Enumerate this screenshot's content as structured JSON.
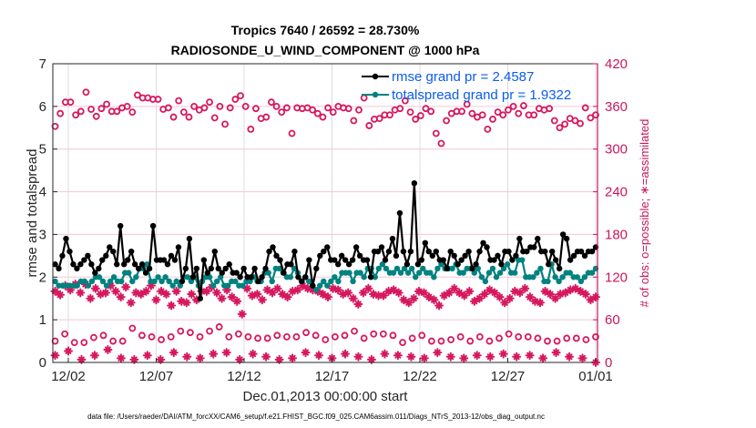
{
  "chart_data": {
    "type": "line",
    "title": "Tropics 7640 / 26592 = 28.730%",
    "subtitle": "RADIOSONDE_U_WIND_COMPONENT @ 1000 hPa",
    "xlabel": "Dec.01,2013 00:00:00 start",
    "ylabel": "rmse and totalspread",
    "y2label": "# of obs: o=possible; ∗=assimilated",
    "footnote": "data file: /Users/raeder/DAI/ATM_forcXX/CAM6_setup/f.e21.FHIST_BGC.f09_025.CAM6assim.011/Diags_NTrS_2013-12/obs_diag_output.nc",
    "x_unit": "days since Dec.01,2013 00:00:00",
    "xlim": [
      0,
      31.1
    ],
    "ylim": [
      0,
      7
    ],
    "y2lim": [
      0,
      420
    ],
    "grid": true,
    "legend_position": "top-right",
    "xticks": [
      {
        "value": 1,
        "label": "12/02"
      },
      {
        "value": 6,
        "label": "12/07"
      },
      {
        "value": 11,
        "label": "12/12"
      },
      {
        "value": 16,
        "label": "12/17"
      },
      {
        "value": 21,
        "label": "12/22"
      },
      {
        "value": 26,
        "label": "12/27"
      },
      {
        "value": 31,
        "label": "01/01"
      }
    ],
    "yticks": [
      "0",
      "1",
      "2",
      "3",
      "4",
      "5",
      "6",
      "7"
    ],
    "y2ticks": [
      "0",
      "60",
      "120",
      "180",
      "240",
      "300",
      "360",
      "420"
    ],
    "x_start": 0.25,
    "x_step": 0.25,
    "series": [
      {
        "name": "rmse grand pr = 2.4587",
        "axis": "left",
        "color": "#000000",
        "marker": "dot",
        "values": [
          2.3,
          2.2,
          2.5,
          2.9,
          2.6,
          2.3,
          2.2,
          2.3,
          2.4,
          2.5,
          2.3,
          2.1,
          2.2,
          2.4,
          2.5,
          2.7,
          2.6,
          2.3,
          3.2,
          2.3,
          2.4,
          2.6,
          2.3,
          2.2,
          2.3,
          2.1,
          2.2,
          3.2,
          2.4,
          2.4,
          2.4,
          2.3,
          2.5,
          2.4,
          2.7,
          1.9,
          2.2,
          2.9,
          2.0,
          2.2,
          1.5,
          2.4,
          2.1,
          2.2,
          2.6,
          2.2,
          2.1,
          2.2,
          2.3,
          2.1,
          2.1,
          2.0,
          2.2,
          2.0,
          2.0,
          2.2,
          1.9,
          2.0,
          2.2,
          2.6,
          2.7,
          2.5,
          2.4,
          2.1,
          2.3,
          2.3,
          2.6,
          2.0,
          1.9,
          2.0,
          2.4,
          1.8,
          2.2,
          2.5,
          2.6,
          2.7,
          2.4,
          2.4,
          2.3,
          2.5,
          2.4,
          2.3,
          2.4,
          2.7,
          2.5,
          2.4,
          2.4,
          2.0,
          2.6,
          2.6,
          2.7,
          2.4,
          2.6,
          2.9,
          2.5,
          3.5,
          2.6,
          2.3,
          2.6,
          4.2,
          2.3,
          2.4,
          2.8,
          2.6,
          2.5,
          2.6,
          2.4,
          2.4,
          2.2,
          2.6,
          2.5,
          2.3,
          2.4,
          2.5,
          2.6,
          2.2,
          2.3,
          2.6,
          2.8,
          2.7,
          2.4,
          2.4,
          2.5,
          2.3,
          2.6,
          2.6,
          2.4,
          2.5,
          2.9,
          2.6,
          2.6,
          2.7,
          2.7,
          2.9,
          2.6,
          2.6,
          2.3,
          2.6,
          2.4,
          2.2,
          3.0,
          2.9,
          2.4,
          2.5,
          2.6,
          2.6,
          2.5,
          2.6,
          2.6,
          2.7
        ]
      },
      {
        "name": "totalspread grand pr = 1.9322",
        "axis": "left",
        "color": "#00827f",
        "marker": "dot",
        "values": [
          1.9,
          1.8,
          1.8,
          1.8,
          1.8,
          1.8,
          1.8,
          1.9,
          1.9,
          1.8,
          1.9,
          2.0,
          2.0,
          1.9,
          1.8,
          1.9,
          2.0,
          1.9,
          1.9,
          2.1,
          2.1,
          1.9,
          2.0,
          2.2,
          2.2,
          2.3,
          1.9,
          1.9,
          2.0,
          1.9,
          2.0,
          1.9,
          1.8,
          1.9,
          1.8,
          2.0,
          2.0,
          1.9,
          2.0,
          1.8,
          1.9,
          2.0,
          2.0,
          1.8,
          1.9,
          2.0,
          1.8,
          1.8,
          1.9,
          1.9,
          1.8,
          1.8,
          1.9,
          1.9,
          2.0,
          1.9,
          1.9,
          2.1,
          2.1,
          1.9,
          2.2,
          2.2,
          2.1,
          2.0,
          2.0,
          2.2,
          2.1,
          1.9,
          2.0,
          1.9,
          1.8,
          1.7,
          1.8,
          1.9,
          1.8,
          1.9,
          2.0,
          1.9,
          2.1,
          2.1,
          2.1,
          1.9,
          2.1,
          2.1,
          2.0,
          2.2,
          2.2,
          2.0,
          2.2,
          2.3,
          2.2,
          2.1,
          2.1,
          2.2,
          2.1,
          2.2,
          2.1,
          2.2,
          2.0,
          2.1,
          2.2,
          2.1,
          2.1,
          2.0,
          2.2,
          2.3,
          2.2,
          2.2,
          2.2,
          2.3,
          2.1,
          2.1,
          2.2,
          2.2,
          2.1,
          2.2,
          2.0,
          1.9,
          2.1,
          2.2,
          2.0,
          2.1,
          2.2,
          2.3,
          2.1,
          2.1,
          2.4,
          2.4,
          2.0,
          2.0,
          2.0,
          2.1,
          2.2,
          1.9,
          1.9,
          2.3,
          2.0,
          1.9,
          2.0,
          2.1,
          2.1,
          2.0,
          2.0,
          1.9,
          2.0,
          2.1,
          2.1,
          2.2
        ]
      },
      {
        "name": "obs possible",
        "axis": "right",
        "color": "#d6185e",
        "marker": "circle",
        "values": [
          332,
          350,
          366,
          366,
          348,
          353,
          380,
          356,
          346,
          357,
          363,
          353,
          353,
          358,
          360,
          352,
          376,
          372,
          372,
          370,
          370,
          356,
          358,
          345,
          368,
          352,
          345,
          360,
          355,
          358,
          366,
          344,
          360,
          335,
          358,
          370,
          375,
          360,
          328,
          357,
          343,
          345,
          366,
          360,
          352,
          358,
          322,
          358,
          357,
          358,
          355,
          350,
          345,
          358,
          352,
          360,
          358,
          357,
          340,
          355,
          372,
          333,
          342,
          343,
          348,
          348,
          355,
          357,
          368,
          352,
          342,
          347,
          357,
          353,
          322,
          308,
          340,
          350,
          353,
          353,
          363,
          350,
          345,
          348,
          328,
          342,
          352,
          348,
          355,
          360,
          350,
          361,
          348,
          348,
          357,
          355,
          357,
          340,
          330,
          335,
          343,
          340,
          336,
          358,
          344,
          348
        ],
        "values_low": [
          30,
          40,
          28,
          28,
          35,
          38,
          30,
          30,
          48,
          38,
          36,
          32,
          36,
          44,
          42,
          36,
          44,
          50,
          36,
          40,
          36,
          34,
          34,
          38,
          36,
          36,
          42,
          38,
          32,
          36,
          38,
          44,
          34,
          40,
          40,
          38,
          28,
          34,
          38,
          30,
          30,
          32,
          36,
          30,
          36,
          30,
          34,
          40,
          36,
          36,
          34,
          30,
          30,
          34,
          34,
          32,
          36
        ]
      },
      {
        "name": "obs assimilated",
        "axis": "right",
        "color": "#d6185e",
        "marker": "asterisk",
        "values": [
          100,
          95,
          108,
          102,
          110,
          98,
          110,
          90,
          104,
          96,
          98,
          108,
          100,
          92,
          106,
          84,
          98,
          96,
          100,
          108,
          88,
          100,
          96,
          80,
          100,
          86,
          84,
          96,
          88,
          100,
          100,
          106,
          98,
          90,
          102,
          92,
          86,
          68,
          104,
          94,
          96,
          88,
          102,
          98,
          104,
          96,
          92,
          100,
          102,
          108,
          104,
          102,
          100,
          96,
          92,
          104,
          102,
          96,
          98,
          90,
          82,
          98,
          104,
          96,
          94,
          94,
          100,
          102,
          98,
          88,
          84,
          90,
          100,
          98,
          92,
          88,
          80,
          94,
          98,
          104,
          98,
          94,
          100,
          86,
          90,
          96,
          102,
          98,
          92,
          84,
          90,
          100,
          98,
          104,
          92,
          86,
          84,
          100,
          96,
          90,
          96,
          98,
          102,
          104,
          100,
          96,
          88,
          92
        ],
        "values_low": [
          10,
          16,
          4,
          10,
          18,
          6,
          4,
          10,
          4,
          14,
          8,
          6,
          12,
          14,
          4,
          12,
          8,
          4,
          6,
          14,
          10,
          6,
          12,
          8,
          4,
          12,
          10,
          8,
          6,
          14,
          8,
          6,
          10,
          8,
          12,
          8,
          10,
          6,
          14,
          8,
          6,
          0
        ]
      }
    ]
  }
}
